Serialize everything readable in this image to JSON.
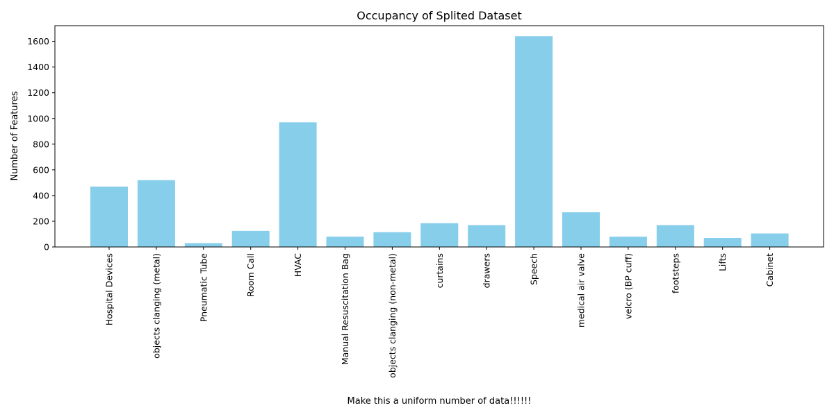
{
  "chart_data": {
    "type": "bar",
    "title": "Occupancy of Splited Dataset",
    "xlabel": "Make this a uniform number of data!!!!!!",
    "ylabel": "Number of Features",
    "categories": [
      "Hospital Devices",
      "objects clanging (metal)",
      "Pneumatic Tube",
      "Room Call",
      "HVAC",
      "Manual Resuscitation Bag",
      "objects clanging (non-metal)",
      "curtains",
      "drawers",
      "Speech",
      "medical air valve",
      "velcro (BP cuff)",
      "footsteps",
      "Lifts",
      "Cabinet"
    ],
    "values": [
      470,
      520,
      30,
      125,
      970,
      80,
      115,
      185,
      170,
      1640,
      270,
      80,
      170,
      70,
      105
    ],
    "ylim": [
      0,
      1722
    ],
    "yticks": [
      0,
      200,
      400,
      600,
      800,
      1000,
      1200,
      1400,
      1600
    ],
    "bar_color": "#87ceeb",
    "grid": false,
    "legend": "none"
  }
}
